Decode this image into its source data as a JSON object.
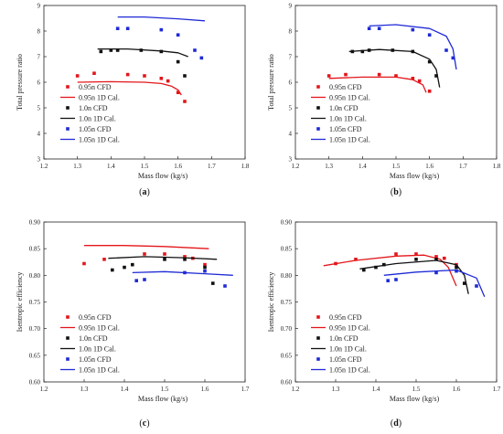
{
  "legend_entries": [
    "0.95n CFD",
    "0.95n 1D Cal.",
    "1.0n CFD",
    "1.0n 1D Cal.",
    "1.05n CFD",
    "1.05n 1D Cal."
  ],
  "colors": {
    "0.95n": "#e3161b",
    "1.0n": "#111111",
    "1.05n": "#1f2ad6"
  },
  "chart_data": [
    {
      "id": "a",
      "type": "scatter-line",
      "panel_label": "a",
      "xlabel": "Mass flow (kg/s)",
      "ylabel": "Total pressure ratio",
      "xlim": [
        1.2,
        1.8
      ],
      "ylim": [
        3,
        9
      ],
      "xticks": [
        "1.2",
        "1.3",
        "1.4",
        "1.5",
        "1.6",
        "1.7",
        "1.8"
      ],
      "yticks": [
        "3",
        "4",
        "5",
        "6",
        "7",
        "8",
        "9"
      ],
      "series": [
        {
          "name": "0.95n CFD",
          "kind": "points",
          "group": "0.95n",
          "x": [
            1.3,
            1.35,
            1.45,
            1.5,
            1.55,
            1.57,
            1.6,
            1.62
          ],
          "y": [
            6.25,
            6.35,
            6.3,
            6.25,
            6.15,
            6.05,
            5.6,
            5.25
          ]
        },
        {
          "name": "0.95n 1D Cal.",
          "kind": "line",
          "group": "0.95n",
          "x": [
            1.3,
            1.4,
            1.5,
            1.55,
            1.58,
            1.6,
            1.61
          ],
          "y": [
            6.0,
            6.02,
            6.0,
            5.95,
            5.85,
            5.7,
            5.5
          ]
        },
        {
          "name": "1.0n CFD",
          "kind": "points",
          "group": "1.0n",
          "x": [
            1.37,
            1.4,
            1.42,
            1.49,
            1.55,
            1.6,
            1.62
          ],
          "y": [
            7.2,
            7.25,
            7.25,
            7.25,
            7.2,
            6.8,
            6.25
          ]
        },
        {
          "name": "1.0n 1D Cal.",
          "kind": "line",
          "group": "1.0n",
          "x": [
            1.36,
            1.45,
            1.55,
            1.6,
            1.63
          ],
          "y": [
            7.3,
            7.3,
            7.22,
            7.15,
            7.0
          ]
        },
        {
          "name": "1.05n CFD",
          "kind": "points",
          "group": "1.05n",
          "x": [
            1.42,
            1.45,
            1.55,
            1.6,
            1.65,
            1.67
          ],
          "y": [
            8.1,
            8.1,
            8.05,
            7.85,
            7.25,
            6.95
          ]
        },
        {
          "name": "1.05n 1D Cal.",
          "kind": "line",
          "group": "1.05n",
          "x": [
            1.42,
            1.5,
            1.6,
            1.68
          ],
          "y": [
            8.55,
            8.55,
            8.48,
            8.4
          ]
        }
      ]
    },
    {
      "id": "b",
      "type": "scatter-line",
      "panel_label": "b",
      "xlabel": "Mass flow (kg/s)",
      "ylabel": "Total pressure ratio",
      "xlim": [
        1.2,
        1.8
      ],
      "ylim": [
        3,
        9
      ],
      "xticks": [
        "1.2",
        "1.3",
        "1.4",
        "1.5",
        "1.6",
        "1.7",
        "1.8"
      ],
      "yticks": [
        "3",
        "4",
        "5",
        "6",
        "7",
        "8",
        "9"
      ],
      "series": [
        {
          "name": "0.95n CFD",
          "kind": "points",
          "group": "0.95n",
          "x": [
            1.3,
            1.35,
            1.45,
            1.5,
            1.55,
            1.57,
            1.6
          ],
          "y": [
            6.25,
            6.3,
            6.3,
            6.25,
            6.15,
            6.05,
            5.65
          ]
        },
        {
          "name": "0.95n 1D Cal.",
          "kind": "line",
          "group": "0.95n",
          "x": [
            1.3,
            1.4,
            1.5,
            1.55,
            1.58,
            1.59
          ],
          "y": [
            6.15,
            6.2,
            6.2,
            6.1,
            5.9,
            5.6
          ]
        },
        {
          "name": "1.0n CFD",
          "kind": "points",
          "group": "1.0n",
          "x": [
            1.37,
            1.4,
            1.42,
            1.49,
            1.55,
            1.6,
            1.62
          ],
          "y": [
            7.2,
            7.2,
            7.25,
            7.25,
            7.2,
            6.8,
            6.25
          ]
        },
        {
          "name": "1.0n 1D Cal.",
          "kind": "line",
          "group": "1.0n",
          "x": [
            1.36,
            1.45,
            1.55,
            1.6,
            1.62,
            1.63
          ],
          "y": [
            7.2,
            7.28,
            7.2,
            6.9,
            6.5,
            5.8
          ]
        },
        {
          "name": "1.05n CFD",
          "kind": "points",
          "group": "1.05n",
          "x": [
            1.42,
            1.45,
            1.55,
            1.6,
            1.65,
            1.67
          ],
          "y": [
            8.1,
            8.1,
            8.05,
            7.85,
            7.25,
            6.95
          ]
        },
        {
          "name": "1.05n 1D Cal.",
          "kind": "line",
          "group": "1.05n",
          "x": [
            1.42,
            1.5,
            1.6,
            1.65,
            1.67,
            1.68
          ],
          "y": [
            8.2,
            8.25,
            8.1,
            7.8,
            7.3,
            6.5
          ]
        }
      ]
    },
    {
      "id": "c",
      "type": "scatter-line",
      "panel_label": "c",
      "xlabel": "Mass flow (kg/s)",
      "ylabel": "Isentropic efficiency",
      "xlim": [
        1.2,
        1.7
      ],
      "ylim": [
        0.6,
        0.9
      ],
      "xticks": [
        "1.2",
        "1.3",
        "1.4",
        "1.5",
        "1.6",
        "1.7"
      ],
      "yticks": [
        "0.60",
        "0.65",
        "0.70",
        "0.75",
        "0.80",
        "0.85",
        "0.90"
      ],
      "series": [
        {
          "name": "0.95n CFD",
          "kind": "points",
          "group": "0.95n",
          "x": [
            1.3,
            1.35,
            1.45,
            1.5,
            1.55,
            1.57,
            1.6
          ],
          "y": [
            0.822,
            0.83,
            0.84,
            0.84,
            0.835,
            0.832,
            0.82
          ]
        },
        {
          "name": "0.95n 1D Cal.",
          "kind": "line",
          "group": "0.95n",
          "x": [
            1.3,
            1.4,
            1.5,
            1.61
          ],
          "y": [
            0.856,
            0.856,
            0.854,
            0.85
          ]
        },
        {
          "name": "1.0n CFD",
          "kind": "points",
          "group": "1.0n",
          "x": [
            1.37,
            1.4,
            1.42,
            1.5,
            1.55,
            1.6,
            1.62
          ],
          "y": [
            0.81,
            0.815,
            0.82,
            0.83,
            0.83,
            0.815,
            0.785
          ]
        },
        {
          "name": "1.0n 1D Cal.",
          "kind": "line",
          "group": "1.0n",
          "x": [
            1.36,
            1.45,
            1.55,
            1.63
          ],
          "y": [
            0.832,
            0.835,
            0.833,
            0.83
          ]
        },
        {
          "name": "1.05n CFD",
          "kind": "points",
          "group": "1.05n",
          "x": [
            1.43,
            1.45,
            1.55,
            1.6,
            1.65
          ],
          "y": [
            0.79,
            0.792,
            0.805,
            0.808,
            0.78
          ]
        },
        {
          "name": "1.05n 1D Cal.",
          "kind": "line",
          "group": "1.05n",
          "x": [
            1.42,
            1.5,
            1.6,
            1.67
          ],
          "y": [
            0.805,
            0.807,
            0.803,
            0.8
          ]
        }
      ]
    },
    {
      "id": "d",
      "type": "scatter-line",
      "panel_label": "d",
      "xlabel": "Mass flow (kg/s)",
      "ylabel": "Isentropic efficiency",
      "xlim": [
        1.2,
        1.7
      ],
      "ylim": [
        0.6,
        0.9
      ],
      "xticks": [
        "1.2",
        "1.3",
        "1.4",
        "1.5",
        "1.6",
        "1.7"
      ],
      "yticks": [
        "0.60",
        "0.65",
        "0.70",
        "0.75",
        "0.80",
        "0.85",
        "0.90"
      ],
      "series": [
        {
          "name": "0.95n CFD",
          "kind": "points",
          "group": "0.95n",
          "x": [
            1.3,
            1.35,
            1.45,
            1.5,
            1.55,
            1.57,
            1.6
          ],
          "y": [
            0.822,
            0.83,
            0.84,
            0.84,
            0.835,
            0.832,
            0.82
          ]
        },
        {
          "name": "0.95n 1D Cal.",
          "kind": "line",
          "group": "0.95n",
          "x": [
            1.27,
            1.35,
            1.45,
            1.52,
            1.56,
            1.58,
            1.6
          ],
          "y": [
            0.818,
            0.828,
            0.836,
            0.838,
            0.83,
            0.815,
            0.78
          ]
        },
        {
          "name": "1.0n CFD",
          "kind": "points",
          "group": "1.0n",
          "x": [
            1.37,
            1.4,
            1.42,
            1.5,
            1.55,
            1.6,
            1.62
          ],
          "y": [
            0.81,
            0.815,
            0.82,
            0.83,
            0.83,
            0.815,
            0.785
          ]
        },
        {
          "name": "1.0n 1D Cal.",
          "kind": "line",
          "group": "1.0n",
          "x": [
            1.36,
            1.45,
            1.55,
            1.6,
            1.62,
            1.63
          ],
          "y": [
            0.812,
            0.822,
            0.828,
            0.82,
            0.8,
            0.765
          ]
        },
        {
          "name": "1.05n CFD",
          "kind": "points",
          "group": "1.05n",
          "x": [
            1.43,
            1.45,
            1.55,
            1.6,
            1.65
          ],
          "y": [
            0.79,
            0.792,
            0.805,
            0.808,
            0.78
          ]
        },
        {
          "name": "1.05n 1D Cal.",
          "kind": "line",
          "group": "1.05n",
          "x": [
            1.42,
            1.5,
            1.6,
            1.65,
            1.67
          ],
          "y": [
            0.8,
            0.806,
            0.81,
            0.795,
            0.76
          ]
        }
      ]
    }
  ]
}
